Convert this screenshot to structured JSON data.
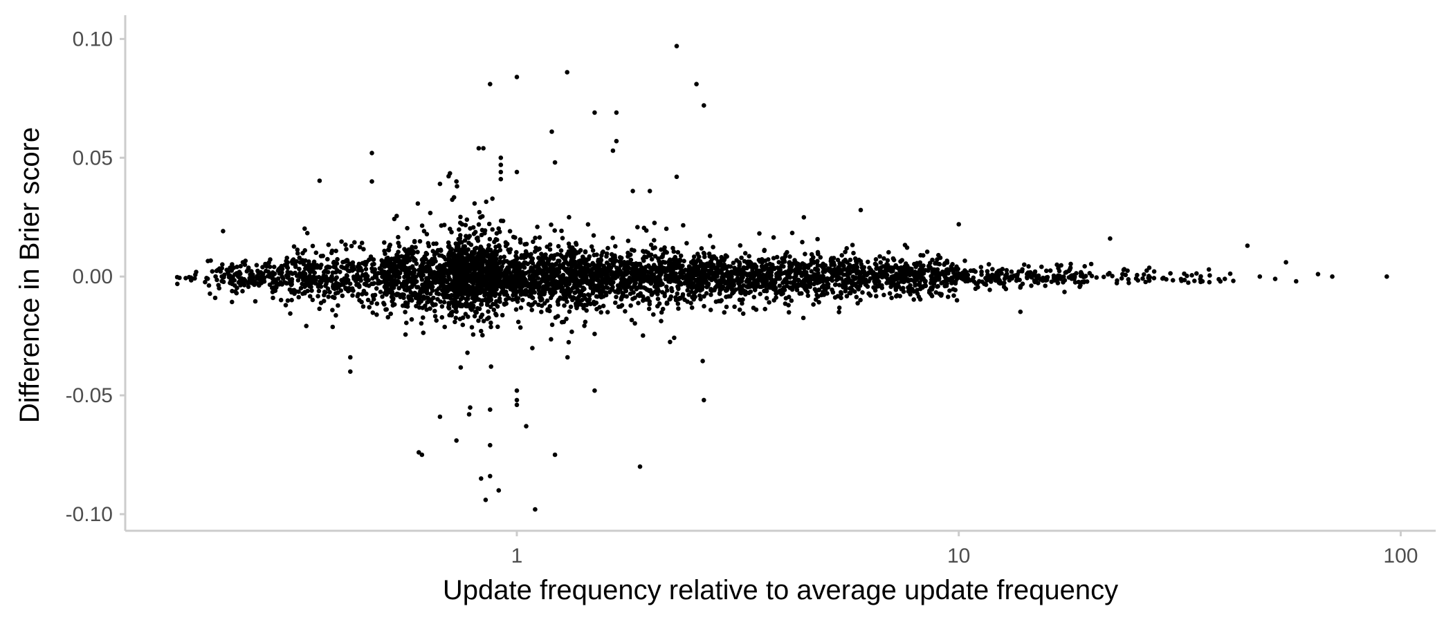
{
  "chart_data": {
    "type": "scatter",
    "title": "",
    "xlabel": "Update frequency relative to average update frequency",
    "ylabel": "Difference in Brier score",
    "x_scale": "log10",
    "xlim": [
      0.13,
      120
    ],
    "ylim": [
      -0.107,
      0.11
    ],
    "x_ticks": [
      {
        "value": 1,
        "label": "1"
      },
      {
        "value": 10,
        "label": "10"
      },
      {
        "value": 100,
        "label": "100"
      }
    ],
    "y_ticks": [
      {
        "value": 0.1,
        "label": "0.10"
      },
      {
        "value": 0.05,
        "label": "0.05"
      },
      {
        "value": 0.0,
        "label": "0.00"
      },
      {
        "value": -0.05,
        "label": "-0.05"
      },
      {
        "value": -0.1,
        "label": "-0.10"
      }
    ],
    "grid": false,
    "legend": "none",
    "marker_color": "#000000",
    "axis_color": "#cccccc",
    "description_note": "",
    "outliers": [
      {
        "x": 2.3,
        "y": 0.097
      },
      {
        "x": 1.3,
        "y": 0.086
      },
      {
        "x": 1.0,
        "y": 0.084
      },
      {
        "x": 0.87,
        "y": 0.081
      },
      {
        "x": 2.55,
        "y": 0.081
      },
      {
        "x": 2.65,
        "y": 0.072
      },
      {
        "x": 1.5,
        "y": 0.069
      },
      {
        "x": 1.68,
        "y": 0.069
      },
      {
        "x": 1.2,
        "y": 0.061
      },
      {
        "x": 1.68,
        "y": 0.057
      },
      {
        "x": 1.65,
        "y": 0.053
      },
      {
        "x": 0.84,
        "y": 0.054
      },
      {
        "x": 0.82,
        "y": 0.054
      },
      {
        "x": 0.47,
        "y": 0.052
      },
      {
        "x": 0.92,
        "y": 0.05
      },
      {
        "x": 1.22,
        "y": 0.048
      },
      {
        "x": 0.92,
        "y": 0.047
      },
      {
        "x": 0.92,
        "y": 0.044
      },
      {
        "x": 1.0,
        "y": 0.044
      },
      {
        "x": 0.92,
        "y": 0.041
      },
      {
        "x": 0.47,
        "y": 0.04
      },
      {
        "x": 2.3,
        "y": 0.042
      },
      {
        "x": 0.67,
        "y": 0.039
      },
      {
        "x": 0.73,
        "y": 0.04
      },
      {
        "x": 1.83,
        "y": 0.036
      },
      {
        "x": 2.0,
        "y": 0.036
      },
      {
        "x": 6.0,
        "y": 0.028
      },
      {
        "x": 10.0,
        "y": 0.022
      },
      {
        "x": 0.42,
        "y": -0.034
      },
      {
        "x": 0.42,
        "y": -0.04
      },
      {
        "x": 1.5,
        "y": -0.048
      },
      {
        "x": 1.0,
        "y": -0.048
      },
      {
        "x": 1.0,
        "y": -0.052
      },
      {
        "x": 1.0,
        "y": -0.054
      },
      {
        "x": 2.65,
        "y": -0.052
      },
      {
        "x": 0.87,
        "y": -0.056
      },
      {
        "x": 0.78,
        "y": -0.058
      },
      {
        "x": 0.67,
        "y": -0.059
      },
      {
        "x": 1.05,
        "y": -0.063
      },
      {
        "x": 0.87,
        "y": -0.071
      },
      {
        "x": 0.73,
        "y": -0.069
      },
      {
        "x": 0.6,
        "y": -0.074
      },
      {
        "x": 0.61,
        "y": -0.075
      },
      {
        "x": 1.22,
        "y": -0.075
      },
      {
        "x": 1.9,
        "y": -0.08
      },
      {
        "x": 0.87,
        "y": -0.084
      },
      {
        "x": 0.83,
        "y": -0.085
      },
      {
        "x": 0.91,
        "y": -0.09
      },
      {
        "x": 0.85,
        "y": -0.094
      },
      {
        "x": 1.1,
        "y": -0.098
      },
      {
        "x": 45,
        "y": 0.013
      },
      {
        "x": 55,
        "y": 0.006
      },
      {
        "x": 22,
        "y": 0.016
      },
      {
        "x": 65,
        "y": 0.001
      },
      {
        "x": 70,
        "y": 0.0
      },
      {
        "x": 93,
        "y": 0.0
      },
      {
        "x": 48,
        "y": 0.0
      },
      {
        "x": 52,
        "y": -0.001
      },
      {
        "x": 58,
        "y": -0.002
      },
      {
        "x": 40,
        "y": -0.001
      }
    ],
    "point_clusters": [
      {
        "x_range": [
          0.17,
          0.2
        ],
        "y_spread": 0.0015,
        "count": 14
      },
      {
        "x_range": [
          0.2,
          0.3
        ],
        "y_spread": 0.004,
        "count": 160
      },
      {
        "x_range": [
          0.3,
          0.5
        ],
        "y_spread": 0.007,
        "count": 360
      },
      {
        "x_range": [
          0.5,
          0.7
        ],
        "y_spread": 0.009,
        "count": 520
      },
      {
        "x_range": [
          0.7,
          0.9
        ],
        "y_spread": 0.011,
        "count": 750
      },
      {
        "x_range": [
          0.9,
          1.5
        ],
        "y_spread": 0.009,
        "count": 800
      },
      {
        "x_range": [
          1.5,
          3.0
        ],
        "y_spread": 0.007,
        "count": 820
      },
      {
        "x_range": [
          3.0,
          6.0
        ],
        "y_spread": 0.006,
        "count": 640
      },
      {
        "x_range": [
          6.0,
          10.0
        ],
        "y_spread": 0.005,
        "count": 380
      },
      {
        "x_range": [
          10.0,
          20.0
        ],
        "y_spread": 0.0028,
        "count": 200
      },
      {
        "x_range": [
          20.0,
          42.0
        ],
        "y_spread": 0.0018,
        "count": 55
      }
    ]
  }
}
